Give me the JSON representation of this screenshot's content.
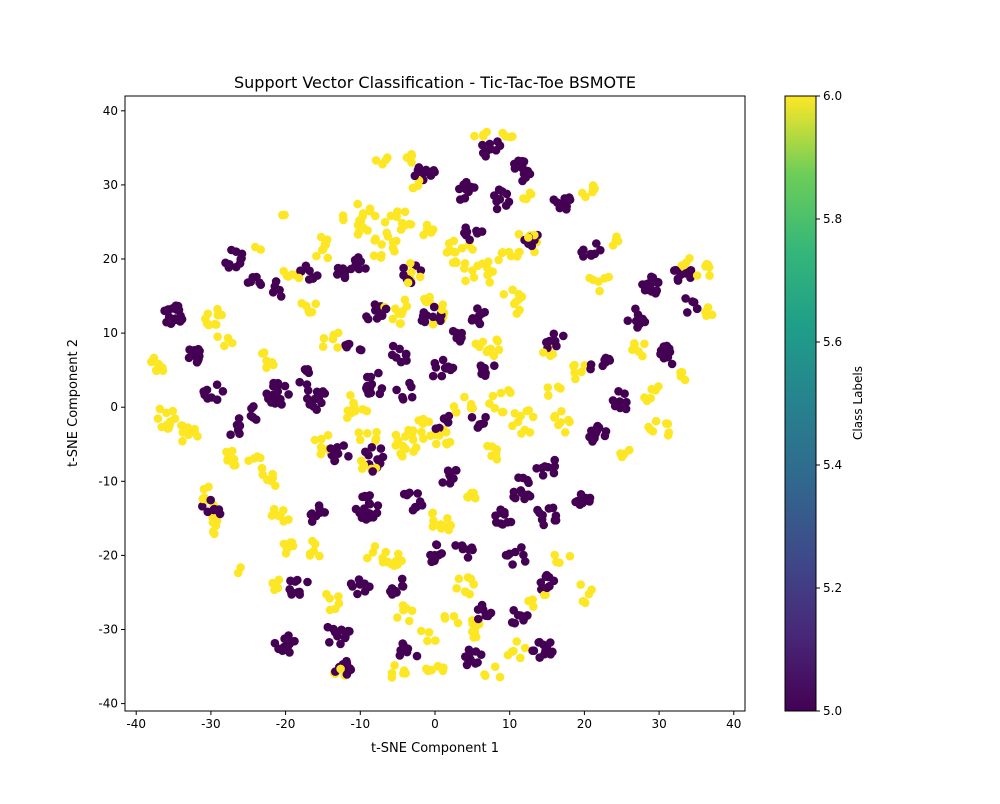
{
  "chart_data": {
    "type": "scatter",
    "title": "Support Vector Classification - Tic-Tac-Toe BSMOTE",
    "xlabel": "t-SNE Component 1",
    "ylabel": "t-SNE Component 2",
    "xlim": [
      -41.5,
      41.5
    ],
    "ylim": [
      -41,
      42
    ],
    "x_ticks": [
      -40,
      -30,
      -20,
      -10,
      0,
      10,
      20,
      30,
      40
    ],
    "y_ticks": [
      -40,
      -30,
      -20,
      -10,
      0,
      10,
      20,
      30,
      40
    ],
    "colorbar": {
      "label": "Class Labels",
      "range": [
        5.0,
        6.0
      ],
      "ticks": [
        5.0,
        5.2,
        5.4,
        5.6,
        5.8,
        6.0
      ],
      "colormap": "viridis"
    },
    "grid": false,
    "series": [
      {
        "class_value": 5.0,
        "color": "#440154",
        "clusters": [
          [
            -35,
            12.5,
            1.4,
            22
          ],
          [
            -31.5,
            7,
            1.6,
            12
          ],
          [
            -29.5,
            2,
            1.5,
            8
          ],
          [
            -27,
            20,
            1.4,
            10
          ],
          [
            -24,
            16.5,
            1.2,
            6
          ],
          [
            -21,
            2,
            1.7,
            18
          ],
          [
            -16,
            1,
            1.6,
            12
          ],
          [
            -17,
            4,
            1.3,
            6
          ],
          [
            -13,
            -6,
            1.6,
            10
          ],
          [
            -8,
            -7,
            1.7,
            10
          ],
          [
            -9,
            -13.5,
            1.7,
            18
          ],
          [
            -15.5,
            -14.5,
            1.4,
            8
          ],
          [
            -18.5,
            -24,
            1.5,
            10
          ],
          [
            -10,
            -24,
            1.5,
            8
          ],
          [
            -5.5,
            -24,
            1.4,
            8
          ],
          [
            -13,
            -30.5,
            1.7,
            12
          ],
          [
            -20,
            -32,
            1.5,
            14
          ],
          [
            -12,
            -35.5,
            1.4,
            10
          ],
          [
            -3.5,
            -33,
            1.4,
            8
          ],
          [
            -3,
            -12.5,
            1.5,
            10
          ],
          [
            2,
            -9.5,
            1.4,
            8
          ],
          [
            0,
            -19.5,
            1.5,
            10
          ],
          [
            4,
            -19,
            1.5,
            8
          ],
          [
            7,
            -28,
            1.5,
            10
          ],
          [
            5,
            -34,
            1.5,
            10
          ],
          [
            11.5,
            -11,
            1.6,
            12
          ],
          [
            9,
            -15,
            1.5,
            10
          ],
          [
            11,
            -20,
            1.5,
            8
          ],
          [
            11,
            -28,
            1.4,
            8
          ],
          [
            15,
            -14.5,
            1.5,
            10
          ],
          [
            15,
            -24,
            1.5,
            8
          ],
          [
            14.5,
            -32.5,
            1.5,
            14
          ],
          [
            19.5,
            -12,
            1.5,
            10
          ],
          [
            15,
            -8,
            1.5,
            8
          ],
          [
            22,
            -4,
            1.6,
            12
          ],
          [
            22,
            6,
            1.5,
            8
          ],
          [
            21,
            21,
            1.5,
            8
          ],
          [
            13,
            23,
            1.3,
            8
          ],
          [
            17,
            27.5,
            1.4,
            12
          ],
          [
            9,
            28,
            1.5,
            10
          ],
          [
            11.5,
            32,
            1.5,
            14
          ],
          [
            7.5,
            35,
            1.4,
            10
          ],
          [
            4,
            29,
            1.5,
            10
          ],
          [
            -1.5,
            32,
            1.5,
            10
          ],
          [
            5,
            24,
            1.5,
            8
          ],
          [
            -0.5,
            12,
            1.6,
            12
          ],
          [
            -3,
            18,
            1.5,
            8
          ],
          [
            -5,
            7,
            1.5,
            8
          ],
          [
            -8,
            3,
            1.7,
            12
          ],
          [
            -8,
            13,
            1.6,
            10
          ],
          [
            -4,
            2,
            1.5,
            6
          ],
          [
            1,
            5,
            1.5,
            10
          ],
          [
            -10,
            19,
            1.4,
            8
          ],
          [
            -17,
            18,
            1.3,
            8
          ],
          [
            -21,
            16,
            1.2,
            6
          ],
          [
            -11,
            8,
            1.3,
            6
          ],
          [
            -25,
            -1,
            1.4,
            6
          ],
          [
            -27,
            -3,
            1.4,
            6
          ],
          [
            -30,
            -14,
            1.5,
            8
          ],
          [
            -13,
            18,
            1.2,
            6
          ],
          [
            6,
            12,
            1.4,
            8
          ],
          [
            16,
            9,
            1.4,
            8
          ],
          [
            25,
            1,
            1.4,
            8
          ],
          [
            28.5,
            16.5,
            1.6,
            18
          ],
          [
            33,
            18,
            1.4,
            10
          ],
          [
            31,
            7,
            1.4,
            10
          ],
          [
            27,
            12,
            1.3,
            8
          ],
          [
            34,
            13.5,
            1.3,
            6
          ],
          [
            7,
            5,
            1.4,
            8
          ],
          [
            1,
            -2,
            1.3,
            6
          ],
          [
            6,
            -2,
            1.3,
            6
          ],
          [
            3,
            10,
            1.4,
            6
          ]
        ]
      },
      {
        "class_value": 6.0,
        "color": "#fde725",
        "clusters": [
          [
            -37,
            6,
            1.3,
            8
          ],
          [
            -36,
            -1.5,
            1.6,
            12
          ],
          [
            -33,
            -3.5,
            1.5,
            10
          ],
          [
            -30,
            12.5,
            1.6,
            10
          ],
          [
            -30,
            -12,
            1.4,
            8
          ],
          [
            -29.5,
            -16,
            1.4,
            6
          ],
          [
            -27,
            -7,
            1.4,
            8
          ],
          [
            -26,
            -22,
            0.8,
            2
          ],
          [
            -24,
            -8,
            1.5,
            6
          ],
          [
            -22,
            -10,
            1.5,
            6
          ],
          [
            -21,
            -15,
            1.5,
            8
          ],
          [
            -21.5,
            -24,
            1.0,
            4
          ],
          [
            -20,
            -19,
            1.2,
            6
          ],
          [
            -19,
            18,
            1.4,
            6
          ],
          [
            -15,
            21.5,
            1.5,
            8
          ],
          [
            -15,
            -5,
            1.4,
            6
          ],
          [
            -16,
            -19,
            1.5,
            6
          ],
          [
            -14,
            -26,
            1.4,
            6
          ],
          [
            -13,
            -36,
            1.0,
            4
          ],
          [
            -10,
            25,
            2.5,
            16
          ],
          [
            -7,
            22,
            2.0,
            12
          ],
          [
            -5,
            25,
            2.0,
            10
          ],
          [
            -3,
            18,
            1.5,
            6
          ],
          [
            -7,
            33,
            1.0,
            4
          ],
          [
            -3,
            34,
            1.0,
            4
          ],
          [
            -8,
            -20,
            1.5,
            6
          ],
          [
            -5,
            -21,
            1.5,
            8
          ],
          [
            -4,
            -28,
            1.5,
            6
          ],
          [
            -5,
            -36,
            1.4,
            6
          ],
          [
            -1,
            -31,
            1.2,
            4
          ],
          [
            0,
            -35,
            1.3,
            6
          ],
          [
            -2,
            -3,
            1.8,
            14
          ],
          [
            1,
            -4,
            1.4,
            8
          ],
          [
            -0.5,
            13,
            2.0,
            10
          ],
          [
            3,
            21,
            2.2,
            14
          ],
          [
            6,
            18,
            2.2,
            12
          ],
          [
            10,
            14,
            2.0,
            10
          ],
          [
            12,
            22,
            2.0,
            8
          ],
          [
            1,
            -15,
            1.8,
            10
          ],
          [
            4,
            -24,
            1.5,
            8
          ],
          [
            5,
            -12,
            1.4,
            6
          ],
          [
            5,
            -30,
            1.6,
            8
          ],
          [
            2,
            -29,
            1.2,
            4
          ],
          [
            7,
            8,
            1.8,
            10
          ],
          [
            9,
            1,
            1.8,
            8
          ],
          [
            10,
            20,
            1.5,
            6
          ],
          [
            17,
            -2,
            1.5,
            8
          ],
          [
            16,
            2,
            1.2,
            4
          ],
          [
            20,
            -25,
            1.4,
            6
          ],
          [
            17,
            -20,
            1.2,
            4
          ],
          [
            21,
            29,
            1.3,
            6
          ],
          [
            22,
            17,
            1.4,
            6
          ],
          [
            24,
            23,
            1.2,
            4
          ],
          [
            27,
            8,
            1.4,
            6
          ],
          [
            29,
            2,
            1.3,
            6
          ],
          [
            30,
            -3,
            1.5,
            8
          ],
          [
            25,
            -6,
            1.2,
            4
          ],
          [
            33,
            20,
            1.2,
            4
          ],
          [
            36,
            18,
            1.4,
            6
          ],
          [
            37,
            13,
            1.0,
            4
          ],
          [
            33,
            4,
            1.0,
            4
          ],
          [
            -5,
            13,
            2.0,
            10
          ],
          [
            -11,
            0,
            2.0,
            10
          ],
          [
            -14,
            9,
            1.5,
            6
          ],
          [
            -4,
            -5,
            1.8,
            10
          ],
          [
            -9,
            -4,
            1.5,
            6
          ],
          [
            -17,
            13,
            1.5,
            6
          ],
          [
            -23,
            6,
            1.4,
            6
          ],
          [
            -28,
            9,
            1.3,
            4
          ],
          [
            -24,
            22,
            1.0,
            2
          ],
          [
            -20,
            26,
            0.5,
            2
          ],
          [
            12,
            -2,
            1.8,
            10
          ],
          [
            14,
            -26,
            1.5,
            6
          ],
          [
            11,
            -33,
            1.4,
            6
          ],
          [
            8,
            -36,
            1.4,
            4
          ],
          [
            4,
            0,
            1.5,
            6
          ],
          [
            -1,
            24,
            1.3,
            6
          ],
          [
            12,
            29,
            1.0,
            4
          ],
          [
            10,
            37,
            1.0,
            4
          ],
          [
            6,
            37,
            1.0,
            4
          ],
          [
            -3,
            30,
            1.2,
            4
          ],
          [
            -9,
            -8,
            1.5,
            6
          ],
          [
            8,
            -6,
            1.4,
            6
          ],
          [
            19,
            5,
            1.5,
            6
          ],
          [
            15,
            8,
            1.2,
            4
          ]
        ]
      }
    ]
  }
}
